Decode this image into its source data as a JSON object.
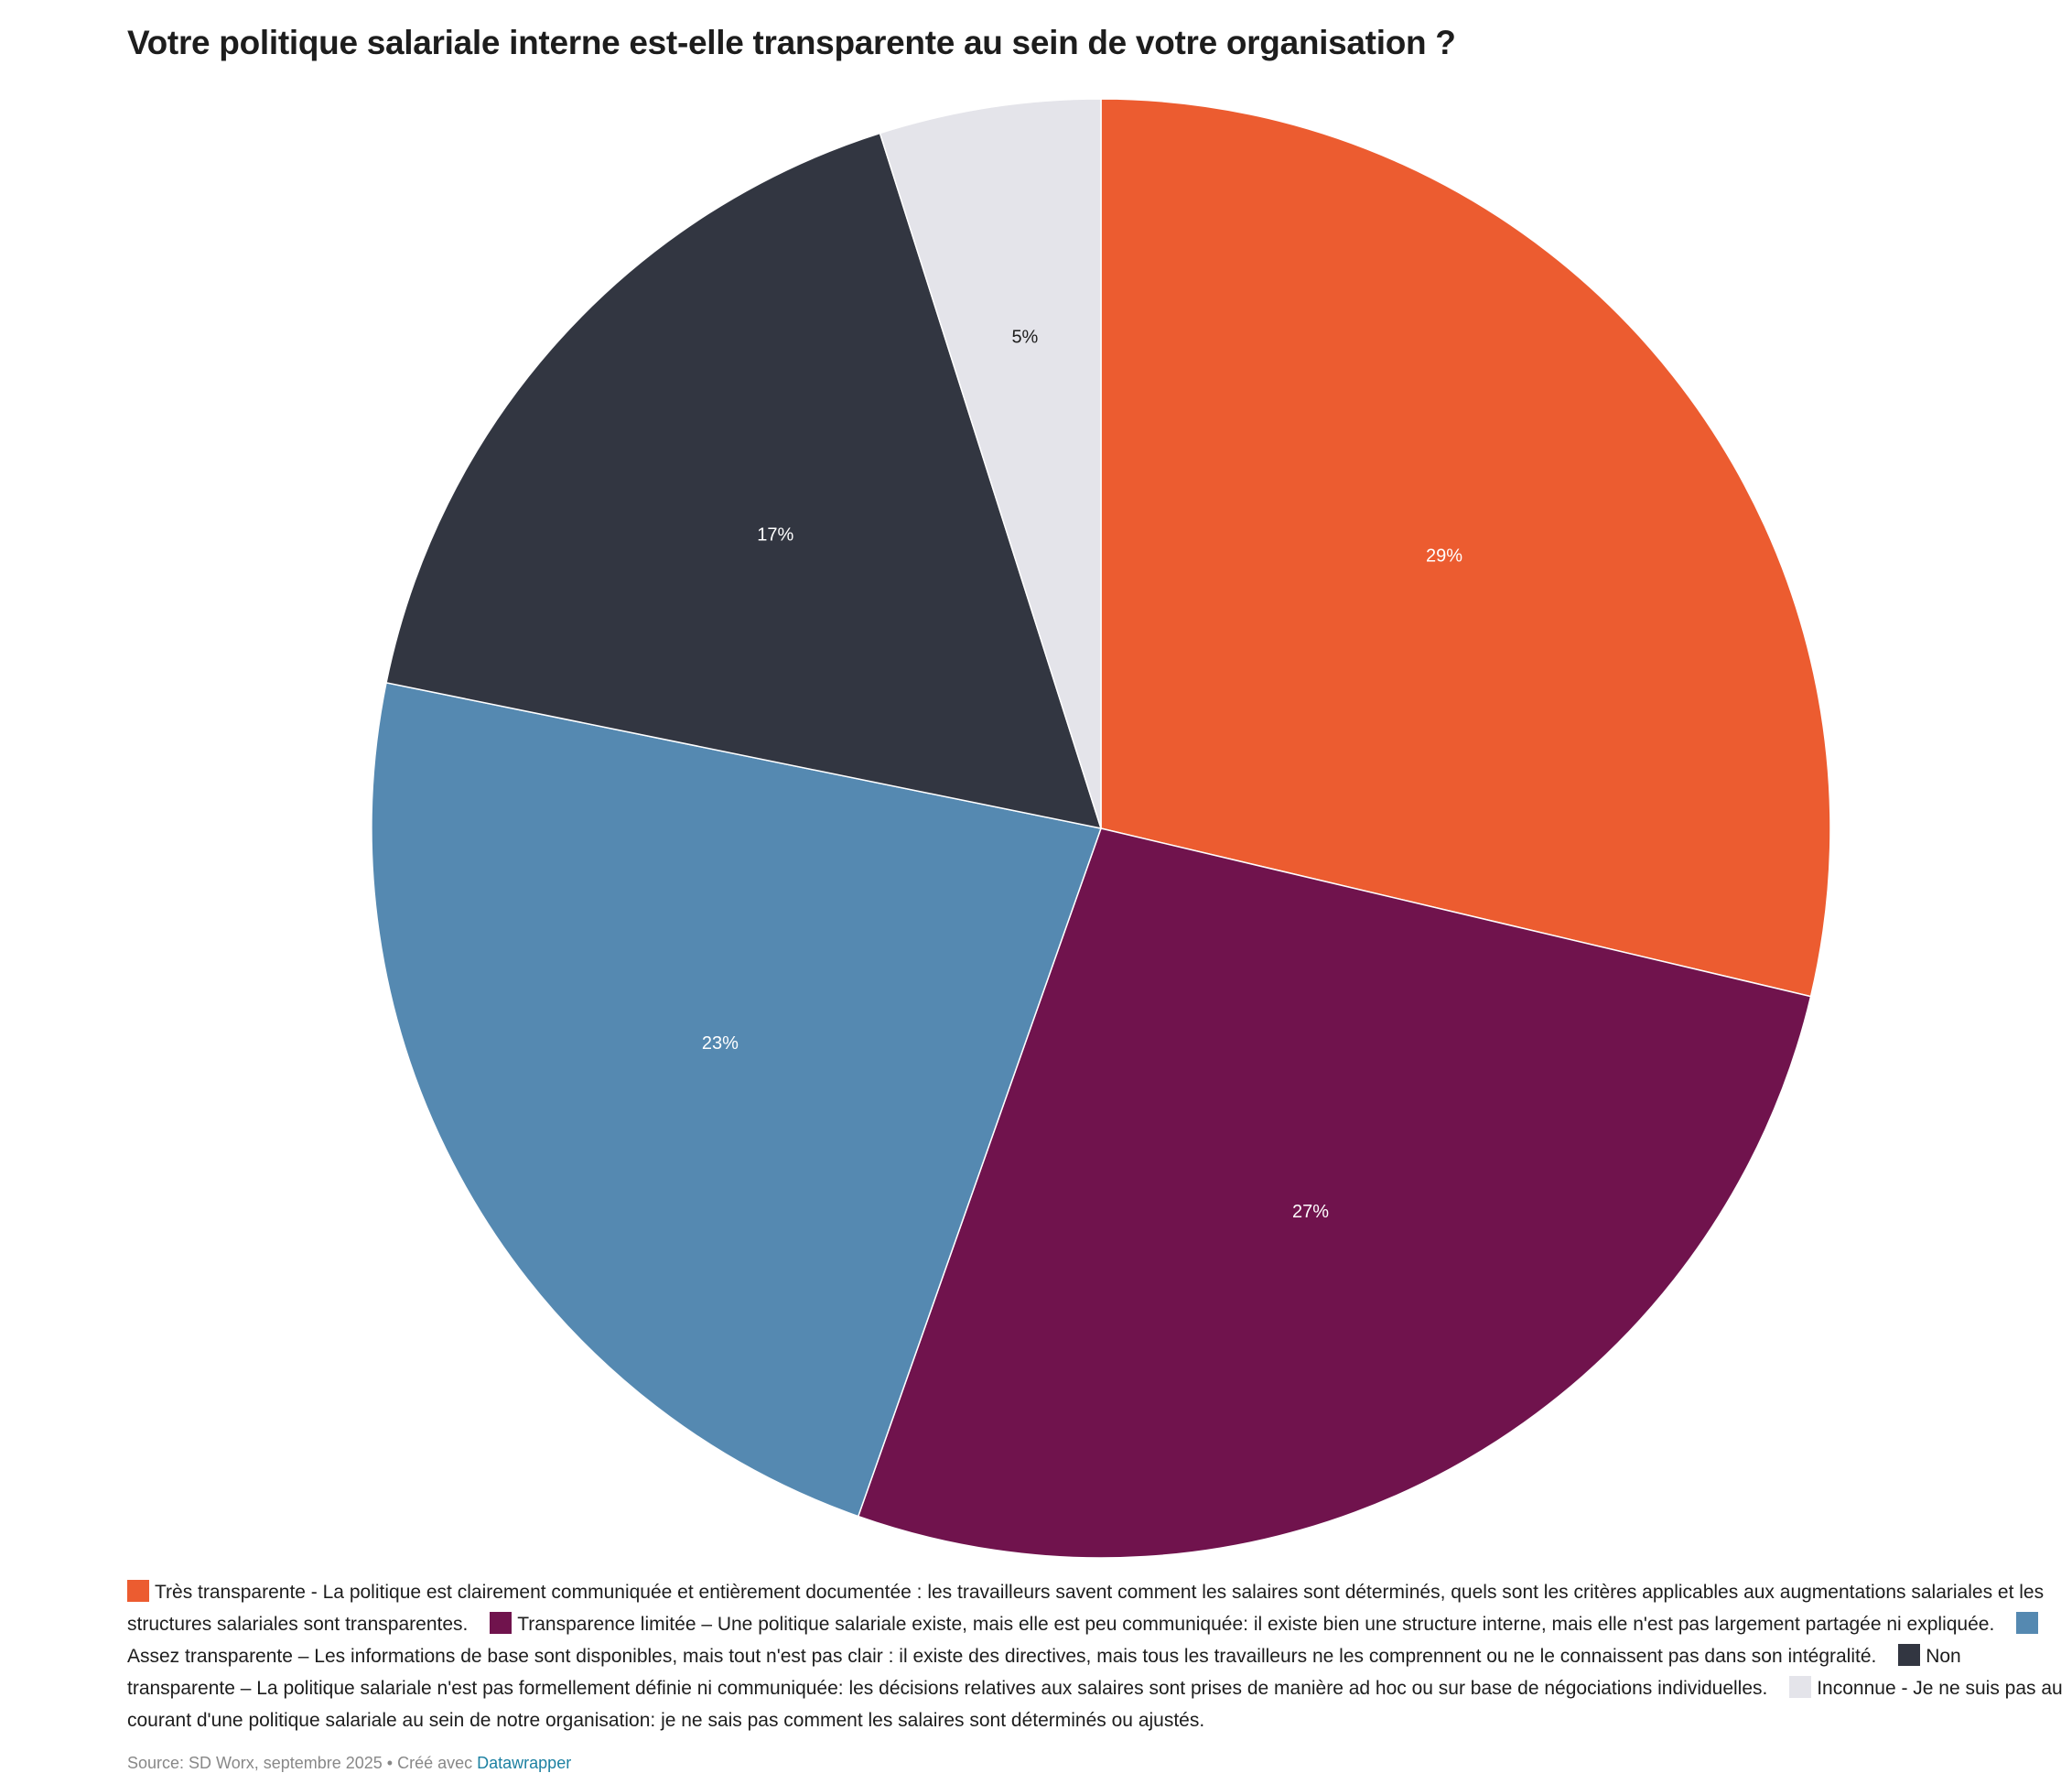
{
  "chart_data": {
    "type": "pie",
    "title": "Votre politique salariale interne est-elle transparente au sein de votre organisation ?",
    "slices": [
      {
        "name": "Très transparente - La politique est clairement communiquée et entièrement documentée : les travailleurs savent comment les salaires sont déterminés, quels sont les critères applicables aux augmentations salariales et les structures salariales sont transparentes.",
        "value": 28.7,
        "label": "29%",
        "color": "#ec5c30",
        "label_color": "#ffffff"
      },
      {
        "name": "Transparence limitée – Une politique salariale existe, mais elle est peu communiquée: il existe bien une structure interne, mais elle n'est pas largement partagée ni expliquée.",
        "value": 26.7,
        "label": "27%",
        "color": "#70134d",
        "label_color": "#ffffff"
      },
      {
        "name": "Assez transparente – Les informations de base sont disponibles, mais tout n'est pas clair : il existe des directives, mais tous les travailleurs ne les comprennent ou ne le connaissent pas dans son intégralité.",
        "value": 22.8,
        "label": "23%",
        "color": "#5589b1",
        "label_color": "#ffffff"
      },
      {
        "name": "Non transparente – La politique salariale n'est pas formellement définie ni communiquée: les décisions relatives aux salaires sont prises de manière ad hoc ou sur base de négociations individuelles.",
        "value": 16.9,
        "label": "17%",
        "color": "#323641",
        "label_color": "#ffffff"
      },
      {
        "name": "Inconnue - Je ne suis pas au courant d'une politique salariale au sein de notre organisation: je ne sais pas comment les salaires sont déterminés ou ajustés.",
        "value": 4.9,
        "label": "5%",
        "color": "#e4e4ea",
        "label_color": "#1d1d1d"
      }
    ],
    "start": "top",
    "direction": "clockwise",
    "legend_position": "bottom"
  },
  "footer": {
    "source": "Source: SD Worx, septembre 2025  • Créé avec ",
    "link": "Datawrapper"
  }
}
